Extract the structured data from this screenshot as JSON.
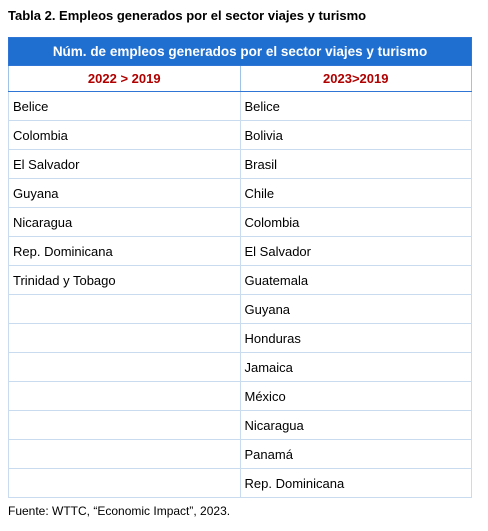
{
  "title": "Tabla 2. Empleos generados por el sector viajes y turismo",
  "table": {
    "header": "Núm. de empleos generados por el sector viajes y turismo",
    "columns": [
      {
        "heading": "2022 > 2019",
        "items": [
          "Belice",
          "Colombia",
          "El Salvador",
          "Guyana",
          "Nicaragua",
          "Rep. Dominicana",
          "Trinidad y Tobago"
        ]
      },
      {
        "heading": "2023>2019",
        "items": [
          "Belice",
          "Bolivia",
          "Brasil",
          "Chile",
          "Colombia",
          "El Salvador",
          "Guatemala",
          "Guyana",
          "Honduras",
          "Jamaica",
          "México",
          "Nicaragua",
          "Panamá",
          "Rep. Dominicana"
        ]
      }
    ]
  },
  "footer": "Fuente: WTTC, “Economic Impact”, 2023."
}
